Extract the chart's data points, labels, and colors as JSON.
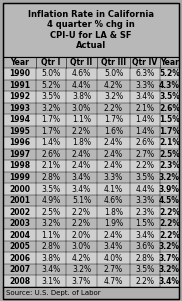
{
  "title": "Inflation Rate in California\n4 quarter % chg in\nCPI-U for LA & SF\nActual",
  "columns": [
    "Year",
    "Qtr I",
    "Qtr II",
    "Qtr III",
    "Qtr IV",
    "Year"
  ],
  "rows": [
    [
      "1990",
      "5.0%",
      "4.6%",
      "5.0%",
      "6.3%",
      "5.2%"
    ],
    [
      "1991",
      "5.2%",
      "4.4%",
      "4.2%",
      "3.3%",
      "4.3%"
    ],
    [
      "1992",
      "3.5%",
      "3.8%",
      "3.2%",
      "3.4%",
      "3.5%"
    ],
    [
      "1993",
      "3.2%",
      "3.0%",
      "2.2%",
      "2.1%",
      "2.6%"
    ],
    [
      "1994",
      "1.7%",
      "1.1%",
      "1.7%",
      "1.4%",
      "1.5%"
    ],
    [
      "1995",
      "1.7%",
      "2.2%",
      "1.6%",
      "1.4%",
      "1.7%"
    ],
    [
      "1996",
      "1.4%",
      "1.8%",
      "2.4%",
      "2.6%",
      "2.1%"
    ],
    [
      "1997",
      "2.6%",
      "2.4%",
      "2.4%",
      "2.7%",
      "2.5%"
    ],
    [
      "1998",
      "2.1%",
      "2.4%",
      "2.4%",
      "2.2%",
      "2.3%"
    ],
    [
      "1999",
      "2.8%",
      "3.4%",
      "3.3%",
      "3.5%",
      "3.2%"
    ],
    [
      "2000",
      "3.5%",
      "3.4%",
      "4.1%",
      "4.4%",
      "3.9%"
    ],
    [
      "2001",
      "4.9%",
      "5.1%",
      "4.6%",
      "3.3%",
      "4.5%"
    ],
    [
      "2002",
      "2.5%",
      "2.2%",
      "1.8%",
      "2.3%",
      "2.2%"
    ],
    [
      "2003",
      "3.2%",
      "2.2%",
      "1.9%",
      "1.5%",
      "2.2%"
    ],
    [
      "2004",
      "1.1%",
      "2.0%",
      "2.4%",
      "3.4%",
      "2.2%"
    ],
    [
      "2005",
      "2.8%",
      "3.0%",
      "3.4%",
      "3.6%",
      "3.2%"
    ],
    [
      "2006",
      "3.8%",
      "4.2%",
      "4.0%",
      "2.8%",
      "3.7%"
    ],
    [
      "2007",
      "3.4%",
      "3.2%",
      "2.7%",
      "3.5%",
      "3.2%"
    ],
    [
      "2008",
      "3.1%",
      "3.7%",
      "4.7%",
      "2.2%",
      "3.4%"
    ]
  ],
  "footer": "Source: U.S. Dept. of Labor",
  "bg_color": "#a8a8a8",
  "title_bg": "#b8b8b8",
  "header_bg": "#b8b8b8",
  "row_colors": [
    "#d0d0d0",
    "#b8b8b8"
  ],
  "footer_bg": "#b0b0b0",
  "title_fontsize": 6.0,
  "col_fontsize": 5.5,
  "data_fontsize": 5.5,
  "footer_fontsize": 5.0
}
